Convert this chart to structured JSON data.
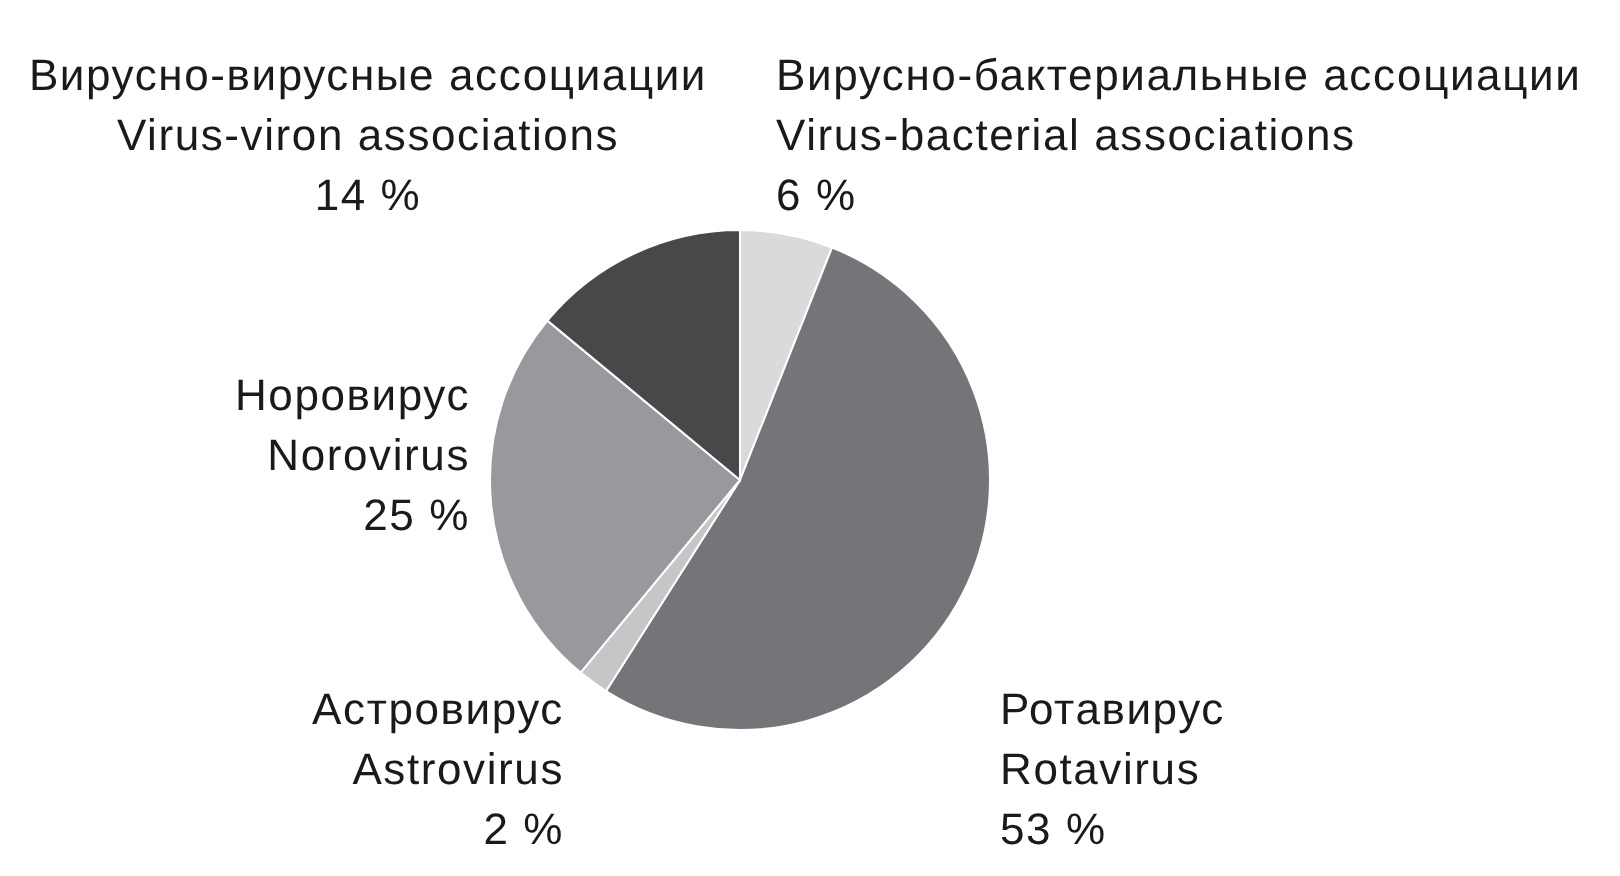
{
  "chart_data": {
    "type": "pie",
    "categories": [
      "Вирусно-бактериальные ассоциации\nVirus-bacterial associations",
      "Ротавирус\nRotavirus",
      "Астровирус\nAstrovirus",
      "Норовирус\nNorovirus",
      "Вирусно-вирусные ассоциации\nVirus-viron associations"
    ],
    "values": [
      6,
      53,
      2,
      25,
      14
    ],
    "colors": [
      "#d9dadc",
      "#747578",
      "#c5c6c8",
      "#98999c",
      "#48484a"
    ],
    "value_labels": [
      "6 %",
      "53 %",
      "2 %",
      "25 %",
      "14 %"
    ]
  }
}
